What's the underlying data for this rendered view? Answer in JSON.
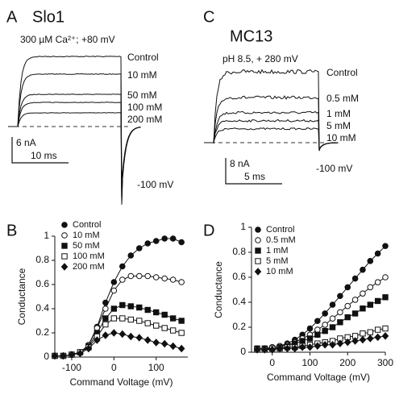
{
  "chart_data": [
    {
      "type": "trace",
      "panel": "A",
      "title": "Slo1",
      "subtitle": "300 µM Ca²⁺; +80 mV",
      "series": [
        {
          "name": "Control",
          "level": 16.3
        },
        {
          "name": "10 mM",
          "level": 12.2
        },
        {
          "name": "50 mM",
          "level": 7.5
        },
        {
          "name": "100 mM",
          "level": 5.6
        },
        {
          "name": "200 mM",
          "level": 3.2
        }
      ],
      "annotation": "-100 mV",
      "scalebar": {
        "y_label": "6 nA",
        "y_value": 6,
        "x_label": "10 ms",
        "x_value": 10
      }
    },
    {
      "type": "line",
      "panel": "B",
      "xlabel": "Command Voltage (mV)",
      "ylabel": "Conductance",
      "x": [
        -140,
        -120,
        -100,
        -80,
        -60,
        -40,
        -20,
        0,
        20,
        40,
        60,
        80,
        100,
        120,
        140,
        160
      ],
      "series": [
        {
          "name": "Control",
          "marker": "circle",
          "color": "#111111",
          "values": [
            0.01,
            0.01,
            0.02,
            0.04,
            0.1,
            0.25,
            0.45,
            0.62,
            0.75,
            0.84,
            0.9,
            0.94,
            0.96,
            0.98,
            0.98,
            0.95
          ]
        },
        {
          "name": "10 mM",
          "marker": "open-circle",
          "color": "#111111",
          "values": [
            0.01,
            0.01,
            0.02,
            0.04,
            0.1,
            0.24,
            0.4,
            0.55,
            0.64,
            0.67,
            0.67,
            0.67,
            0.66,
            0.65,
            0.64,
            0.62
          ]
        },
        {
          "name": "50 mM",
          "marker": "square",
          "color": "#111111",
          "values": [
            0.01,
            0.01,
            0.02,
            0.04,
            0.09,
            0.2,
            0.32,
            0.4,
            0.43,
            0.42,
            0.41,
            0.39,
            0.37,
            0.35,
            0.32,
            0.3
          ]
        },
        {
          "name": "100 mM",
          "marker": "open-square",
          "color": "#111111",
          "values": [
            0.01,
            0.01,
            0.02,
            0.04,
            0.08,
            0.17,
            0.27,
            0.32,
            0.32,
            0.31,
            0.3,
            0.28,
            0.26,
            0.24,
            0.22,
            0.2
          ]
        },
        {
          "name": "200 mM",
          "marker": "diamond",
          "color": "#111111",
          "values": [
            0.01,
            0.01,
            0.02,
            0.03,
            0.07,
            0.14,
            0.18,
            0.2,
            0.19,
            0.17,
            0.16,
            0.14,
            0.12,
            0.11,
            0.09,
            0.07
          ]
        }
      ],
      "xlim": [
        -140,
        175
      ],
      "xticks": [
        -100,
        0,
        100
      ],
      "ylim": [
        0,
        1
      ],
      "yticks": [
        0,
        0.2,
        0.4,
        0.6,
        0.8,
        1
      ],
      "legend": "upper left"
    },
    {
      "type": "trace",
      "panel": "C",
      "title": "MC13",
      "subtitle": "pH 8.5, + 280 mV",
      "series": [
        {
          "name": "Control",
          "level": 22
        },
        {
          "name": "0.5 mM",
          "level": 14
        },
        {
          "name": "1 mM",
          "level": 9.3
        },
        {
          "name": "5 mM",
          "level": 6.8
        },
        {
          "name": "10 mM",
          "level": 4.3
        }
      ],
      "annotation": "-100 mV",
      "scalebar": {
        "y_label": "8 nA",
        "y_value": 8,
        "x_label": "5 ms",
        "x_value": 5
      }
    },
    {
      "type": "line",
      "panel": "D",
      "xlabel": "Command Voltage (mV)",
      "ylabel": "Conductance",
      "x": [
        -40,
        -20,
        0,
        20,
        40,
        60,
        80,
        100,
        120,
        140,
        160,
        180,
        200,
        220,
        240,
        260,
        280,
        300
      ],
      "series": [
        {
          "name": "Control",
          "marker": "circle",
          "color": "#111111",
          "values": [
            0.03,
            0.03,
            0.04,
            0.05,
            0.07,
            0.1,
            0.14,
            0.19,
            0.25,
            0.31,
            0.38,
            0.45,
            0.52,
            0.59,
            0.66,
            0.73,
            0.79,
            0.85
          ]
        },
        {
          "name": "0.5 mM",
          "marker": "open-circle",
          "color": "#111111",
          "values": [
            0.03,
            0.03,
            0.04,
            0.05,
            0.06,
            0.08,
            0.11,
            0.14,
            0.18,
            0.22,
            0.27,
            0.32,
            0.37,
            0.42,
            0.47,
            0.52,
            0.56,
            0.6
          ]
        },
        {
          "name": "1 mM",
          "marker": "square",
          "color": "#111111",
          "values": [
            0.03,
            0.03,
            0.03,
            0.04,
            0.05,
            0.07,
            0.09,
            0.11,
            0.14,
            0.17,
            0.2,
            0.24,
            0.28,
            0.31,
            0.35,
            0.38,
            0.41,
            0.44
          ]
        },
        {
          "name": "5 mM",
          "marker": "open-square",
          "color": "#111111",
          "values": [
            0.02,
            0.02,
            0.03,
            0.03,
            0.04,
            0.04,
            0.05,
            0.06,
            0.07,
            0.08,
            0.09,
            0.11,
            0.12,
            0.13,
            0.15,
            0.16,
            0.18,
            0.19
          ]
        },
        {
          "name": "10 mM",
          "marker": "diamond",
          "color": "#111111",
          "values": [
            0.02,
            0.02,
            0.02,
            0.03,
            0.03,
            0.03,
            0.04,
            0.04,
            0.05,
            0.06,
            0.06,
            0.07,
            0.08,
            0.09,
            0.1,
            0.11,
            0.12,
            0.13
          ]
        }
      ],
      "xlim": [
        -55,
        300
      ],
      "xticks": [
        0,
        100,
        200,
        300
      ],
      "ylim": [
        0,
        1
      ],
      "yticks": [
        0,
        0.2,
        0.4,
        0.6,
        0.8,
        1
      ],
      "legend": "upper left"
    }
  ]
}
